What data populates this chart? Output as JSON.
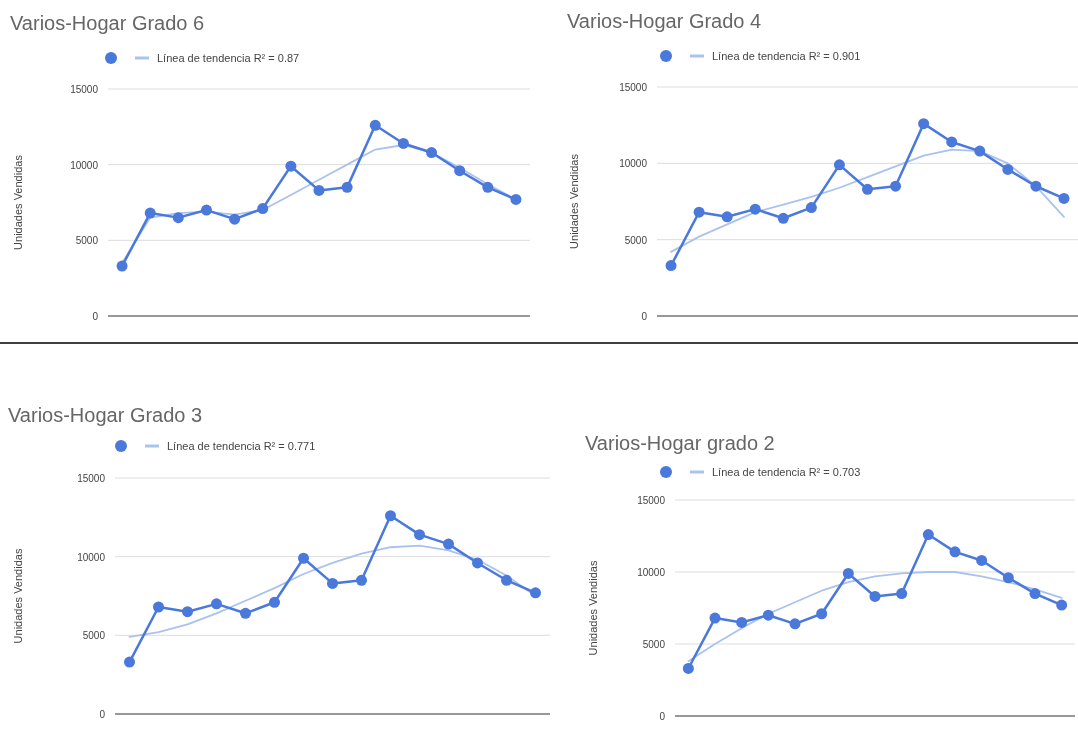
{
  "chart_data": [
    {
      "type": "line",
      "title": "Varios-Hogar Grado 6",
      "ylabel": "Unidades Vendidas",
      "categories": [
        null,
        null,
        null,
        null,
        null,
        null,
        null,
        null,
        null,
        null,
        null,
        null,
        null,
        null,
        null
      ],
      "ylim": [
        0,
        15000
      ],
      "yticks": [
        0,
        5000,
        10000,
        15000
      ],
      "grid": "y",
      "legend": "top",
      "tick_labels": "y",
      "series": [
        {
          "color": "#4a78db",
          "marker": "circle",
          "values": [
            3300,
            6800,
            6500,
            7000,
            6400,
            7100,
            9900,
            8300,
            8500,
            12600,
            11400,
            10800,
            9600,
            8500,
            7700
          ]
        },
        {
          "name": "Línea de tendencia R² = 0.87",
          "color": "#aac2ee",
          "marker": "none",
          "values": [
            3500,
            6500,
            6800,
            6900,
            6700,
            7000,
            8000,
            9000,
            10000,
            11000,
            11300,
            10800,
            9800,
            8700,
            7700
          ]
        }
      ]
    },
    {
      "type": "line",
      "title": "Varios-Hogar Grado 4",
      "ylabel": "Unidades Vendidas",
      "categories": [
        null,
        null,
        null,
        null,
        null,
        null,
        null,
        null,
        null,
        null,
        null,
        null,
        null,
        null,
        null
      ],
      "ylim": [
        0,
        15000
      ],
      "yticks": [
        0,
        5000,
        10000,
        15000
      ],
      "grid": "y",
      "legend": "top",
      "tick_labels": "y",
      "series": [
        {
          "color": "#4a78db",
          "marker": "circle",
          "values": [
            3300,
            6800,
            6500,
            7000,
            6400,
            7100,
            9900,
            8300,
            8500,
            12600,
            11400,
            10800,
            9600,
            8500,
            7700
          ]
        },
        {
          "name": "Línea de tendencia R² = 0.901",
          "color": "#aac2ee",
          "marker": "none",
          "values": [
            4200,
            5200,
            6000,
            6800,
            7300,
            7800,
            8400,
            9100,
            9800,
            10500,
            10900,
            10800,
            10000,
            8500,
            6500
          ]
        }
      ]
    },
    {
      "type": "line",
      "title": "Varios-Hogar Grado 3",
      "ylabel": "Unidades Vendidas",
      "categories": [
        null,
        null,
        null,
        null,
        null,
        null,
        null,
        null,
        null,
        null,
        null,
        null,
        null,
        null,
        null
      ],
      "ylim": [
        0,
        15000
      ],
      "yticks": [
        0,
        5000,
        10000,
        15000
      ],
      "grid": "y",
      "legend": "top",
      "tick_labels": "y",
      "series": [
        {
          "color": "#4a78db",
          "marker": "circle",
          "values": [
            3300,
            6800,
            6500,
            7000,
            6400,
            7100,
            9900,
            8300,
            8500,
            12600,
            11400,
            10800,
            9600,
            8500,
            7700
          ]
        },
        {
          "name": "Línea de tendencia R² = 0.771",
          "color": "#aac2ee",
          "marker": "none",
          "values": [
            4900,
            5200,
            5700,
            6400,
            7200,
            8000,
            8900,
            9600,
            10200,
            10600,
            10700,
            10400,
            9800,
            8800,
            7500
          ]
        }
      ]
    },
    {
      "type": "line",
      "title": "Varios-Hogar grado 2",
      "ylabel": "Unidades Vendidas",
      "categories": [
        null,
        null,
        null,
        null,
        null,
        null,
        null,
        null,
        null,
        null,
        null,
        null,
        null,
        null,
        null
      ],
      "ylim": [
        0,
        15000
      ],
      "yticks": [
        0,
        5000,
        10000,
        15000
      ],
      "grid": "y",
      "legend": "top",
      "tick_labels": "y",
      "series": [
        {
          "color": "#4a78db",
          "marker": "circle",
          "values": [
            3300,
            6800,
            6500,
            7000,
            6400,
            7100,
            9900,
            8300,
            8500,
            12600,
            11400,
            10800,
            9600,
            8500,
            7700
          ]
        },
        {
          "name": "Línea de tendencia R² = 0.703",
          "color": "#aac2ee",
          "marker": "none",
          "values": [
            3800,
            5000,
            6100,
            7100,
            7900,
            8700,
            9300,
            9700,
            9900,
            10000,
            10000,
            9700,
            9300,
            8800,
            8200
          ]
        }
      ]
    }
  ]
}
